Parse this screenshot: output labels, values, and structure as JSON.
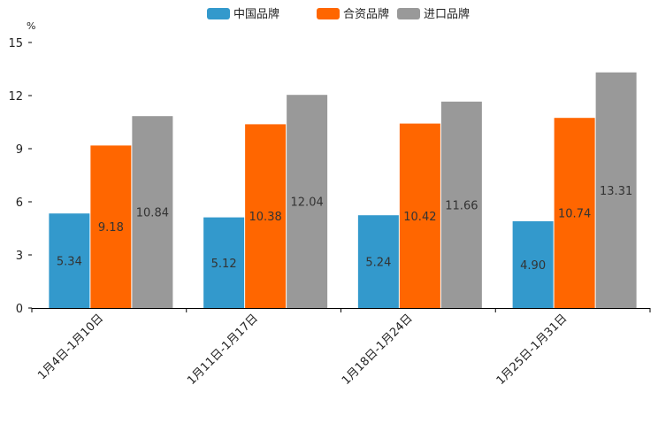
{
  "chart_data": {
    "type": "bar",
    "title": "",
    "xlabel": "",
    "ylabel": "%",
    "ylim": [
      0,
      15
    ],
    "yticks": [
      0,
      3,
      6,
      9,
      12,
      15
    ],
    "yticks_labels": [
      "0",
      "3",
      "6",
      "9",
      "12",
      "15"
    ],
    "grid": false,
    "legend_position": "top-center",
    "categories": [
      "1月4日-1月10日",
      "1月11日-1月17日",
      "1月18日-1月24日",
      "1月25日-1月31日"
    ],
    "series": [
      {
        "name": "中国品牌",
        "color": "#3399cc",
        "values": [
          5.34,
          5.12,
          5.24,
          4.9
        ],
        "labels": [
          "5.34",
          "5.12",
          "5.24",
          "4.90"
        ]
      },
      {
        "name": "合资品牌",
        "color": "#ff6600",
        "values": [
          9.18,
          10.38,
          10.42,
          10.74
        ],
        "labels": [
          "9.18",
          "10.38",
          "10.42",
          "10.74"
        ]
      },
      {
        "name": "进口品牌",
        "color": "#999999",
        "values": [
          10.84,
          12.04,
          11.66,
          13.31
        ],
        "labels": [
          "10.84",
          "12.04",
          "11.66",
          "13.31"
        ]
      }
    ]
  }
}
